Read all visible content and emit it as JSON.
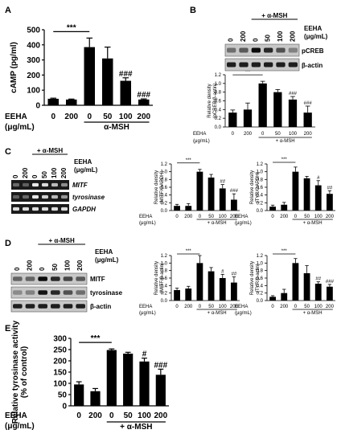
{
  "panels": {
    "A": "A",
    "B": "B",
    "C": "C",
    "D": "D",
    "E": "E"
  },
  "treatment": {
    "eeha_label": "EEHA",
    "unit_label": "(μg/mL)",
    "msh_label": "+ α-MSH",
    "msh_label_A": "α-MSH",
    "doses_ctrl": [
      "0",
      "200"
    ],
    "doses_msh": [
      "0",
      "50",
      "100",
      "200"
    ]
  },
  "blots": {
    "B": {
      "bands": [
        "pCREB",
        "β-actin"
      ]
    },
    "C": {
      "bands": [
        "MITF",
        "tyrosinase",
        "GAPDH"
      ]
    },
    "D": {
      "bands": [
        "MITF",
        "tyrosinase",
        "β-actin"
      ]
    }
  },
  "colors": {
    "bar": "#000000",
    "blot_bg": "#c8c8c8",
    "gel_bg": "#1a1a1a"
  },
  "chart_data": [
    {
      "id": "A",
      "type": "bar",
      "categories": [
        "0",
        "200",
        "0",
        "50",
        "100",
        "200"
      ],
      "values": [
        43,
        38,
        385,
        310,
        162,
        38
      ],
      "errors": [
        4,
        3,
        60,
        75,
        20,
        4
      ],
      "annotations": [
        "",
        "",
        "***",
        "",
        "###",
        "###"
      ],
      "ylabel": "cAMP (pg/ml)",
      "ylim": [
        0,
        500
      ],
      "yticks": [
        0,
        100,
        200,
        300,
        400,
        500
      ]
    },
    {
      "id": "B",
      "type": "bar",
      "categories": [
        "0",
        "200",
        "0",
        "50",
        "100",
        "200"
      ],
      "values": [
        0.33,
        0.4,
        1.0,
        0.8,
        0.63,
        0.33
      ],
      "errors": [
        0.06,
        0.15,
        0.05,
        0.06,
        0.07,
        0.15
      ],
      "annotations": [
        "",
        "",
        "***",
        "",
        "###",
        "###"
      ],
      "ylabel": "Relative density (pCREB/β-actin)",
      "ylim": [
        0,
        1.2
      ],
      "yticks": [
        0.0,
        0.2,
        0.4,
        0.6,
        0.8,
        1.0,
        1.2
      ]
    },
    {
      "id": "C-MITF",
      "type": "bar",
      "categories": [
        "0",
        "200",
        "0",
        "50",
        "100",
        "200"
      ],
      "values": [
        0.12,
        0.12,
        1.0,
        0.85,
        0.57,
        0.28
      ],
      "errors": [
        0.04,
        0.06,
        0.06,
        0.08,
        0.1,
        0.15
      ],
      "annotations": [
        "",
        "",
        "***",
        "",
        "##",
        "###"
      ],
      "ylabel": "Relative density (MITF/GAPDH)",
      "ylim": [
        0,
        1.2
      ],
      "yticks": [
        0.0,
        0.2,
        0.4,
        0.6,
        0.8,
        1.0,
        1.2
      ]
    },
    {
      "id": "C-TYR",
      "type": "bar",
      "categories": [
        "0",
        "200",
        "0",
        "50",
        "100",
        "200"
      ],
      "values": [
        0.1,
        0.15,
        1.0,
        0.83,
        0.65,
        0.43
      ],
      "errors": [
        0.04,
        0.06,
        0.12,
        0.05,
        0.12,
        0.08
      ],
      "annotations": [
        "",
        "",
        "***",
        "",
        "#",
        "##"
      ],
      "ylabel": "Relative density (TYR/GAPDH)",
      "ylim": [
        0,
        1.2
      ],
      "yticks": [
        0.0,
        0.2,
        0.4,
        0.6,
        0.8,
        1.0,
        1.2
      ]
    },
    {
      "id": "D-MITF",
      "type": "bar",
      "categories": [
        "0",
        "200",
        "0",
        "50",
        "100",
        "200"
      ],
      "values": [
        0.28,
        0.32,
        1.0,
        0.78,
        0.6,
        0.48
      ],
      "errors": [
        0.05,
        0.06,
        0.2,
        0.1,
        0.1,
        0.15
      ],
      "annotations": [
        "",
        "",
        "***",
        "",
        "#",
        "##"
      ],
      "ylabel": "Relative density (MITF/β-actin)",
      "ylim": [
        0,
        1.2
      ],
      "yticks": [
        0.0,
        0.2,
        0.4,
        0.6,
        0.8,
        1.0,
        1.2
      ]
    },
    {
      "id": "D-TYR",
      "type": "bar",
      "categories": [
        "0",
        "200",
        "0",
        "50",
        "100",
        "200"
      ],
      "values": [
        0.1,
        0.2,
        1.0,
        0.73,
        0.45,
        0.37
      ],
      "errors": [
        0.03,
        0.1,
        0.12,
        0.2,
        0.05,
        0.06
      ],
      "annotations": [
        "",
        "",
        "***",
        "",
        "##",
        "###"
      ],
      "ylabel": "Relative density (TYR/β-actin)",
      "ylim": [
        0,
        1.2
      ],
      "yticks": [
        0.0,
        0.2,
        0.4,
        0.6,
        0.8,
        1.0,
        1.2
      ]
    },
    {
      "id": "E",
      "type": "bar",
      "categories": [
        "0",
        "200",
        "0",
        "50",
        "100",
        "200"
      ],
      "values": [
        95,
        65,
        248,
        232,
        197,
        138
      ],
      "errors": [
        12,
        12,
        5,
        6,
        15,
        25
      ],
      "annotations": [
        "",
        "",
        "***",
        "",
        "#",
        "###"
      ],
      "ylabel": "Relative tyrosinase activity (% of control)",
      "ylim": [
        0,
        300
      ],
      "yticks": [
        0,
        50,
        100,
        150,
        200,
        250,
        300
      ]
    }
  ]
}
